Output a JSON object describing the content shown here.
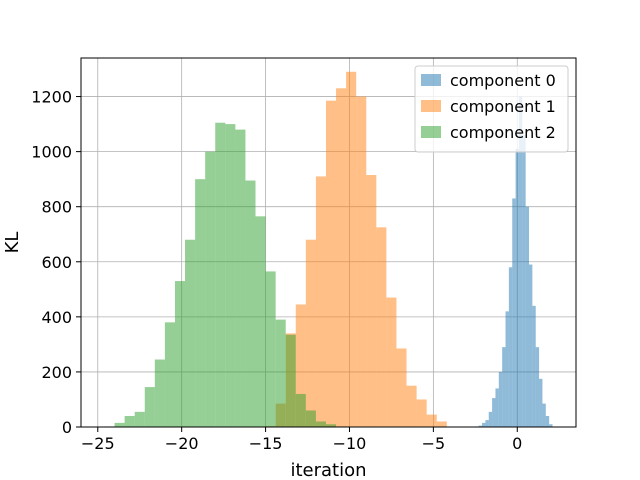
{
  "chart_data": {
    "type": "histogram",
    "xlabel": "iteration",
    "ylabel": "KL",
    "xlim": [
      -26,
      3.5
    ],
    "ylim": [
      0,
      1340
    ],
    "xticks": [
      -25,
      -20,
      -15,
      -10,
      -5,
      0
    ],
    "yticks": [
      0,
      200,
      400,
      600,
      800,
      1000,
      1200
    ],
    "grid": true,
    "legend_position": "top-right",
    "series": [
      {
        "name": "component 0",
        "color": "#1f77b4",
        "bin_width": 0.2,
        "bins": [
          [
            -2.5,
            2
          ],
          [
            -2.3,
            5
          ],
          [
            -2.1,
            15
          ],
          [
            -1.9,
            25
          ],
          [
            -1.7,
            55
          ],
          [
            -1.5,
            105
          ],
          [
            -1.3,
            140
          ],
          [
            -1.1,
            200
          ],
          [
            -0.9,
            290
          ],
          [
            -0.7,
            420
          ],
          [
            -0.5,
            580
          ],
          [
            -0.3,
            830
          ],
          [
            -0.1,
            1010
          ],
          [
            0.1,
            1200
          ],
          [
            0.3,
            1060
          ],
          [
            0.5,
            800
          ],
          [
            0.7,
            590
          ],
          [
            0.9,
            440
          ],
          [
            1.1,
            290
          ],
          [
            1.3,
            175
          ],
          [
            1.5,
            85
          ],
          [
            1.7,
            40
          ],
          [
            1.9,
            10
          ]
        ]
      },
      {
        "name": "component 1",
        "color": "#ff7f0e",
        "bin_width": 0.6,
        "bins": [
          [
            -15.0,
            3
          ],
          [
            -14.4,
            85
          ],
          [
            -13.8,
            340
          ],
          [
            -13.2,
            445
          ],
          [
            -12.6,
            680
          ],
          [
            -12.0,
            910
          ],
          [
            -11.4,
            1185
          ],
          [
            -10.8,
            1230
          ],
          [
            -10.2,
            1290
          ],
          [
            -9.6,
            1200
          ],
          [
            -9.0,
            915
          ],
          [
            -8.4,
            725
          ],
          [
            -7.8,
            470
          ],
          [
            -7.2,
            285
          ],
          [
            -6.6,
            150
          ],
          [
            -6.0,
            100
          ],
          [
            -5.4,
            45
          ],
          [
            -4.8,
            20
          ]
        ]
      },
      {
        "name": "component 2",
        "color": "#2ca02c",
        "bin_width": 0.6,
        "bins": [
          [
            -24.6,
            2
          ],
          [
            -24.0,
            15
          ],
          [
            -23.4,
            40
          ],
          [
            -22.8,
            55
          ],
          [
            -22.2,
            145
          ],
          [
            -21.6,
            245
          ],
          [
            -21.0,
            380
          ],
          [
            -20.4,
            530
          ],
          [
            -19.8,
            680
          ],
          [
            -19.2,
            900
          ],
          [
            -18.6,
            1000
          ],
          [
            -18.0,
            1105
          ],
          [
            -17.4,
            1100
          ],
          [
            -16.8,
            1080
          ],
          [
            -16.2,
            895
          ],
          [
            -15.6,
            765
          ],
          [
            -15.0,
            565
          ],
          [
            -14.4,
            390
          ],
          [
            -13.8,
            335
          ],
          [
            -13.2,
            120
          ],
          [
            -12.6,
            60
          ],
          [
            -12.0,
            20
          ],
          [
            -11.4,
            10
          ],
          [
            -10.8,
            2
          ]
        ]
      }
    ]
  }
}
